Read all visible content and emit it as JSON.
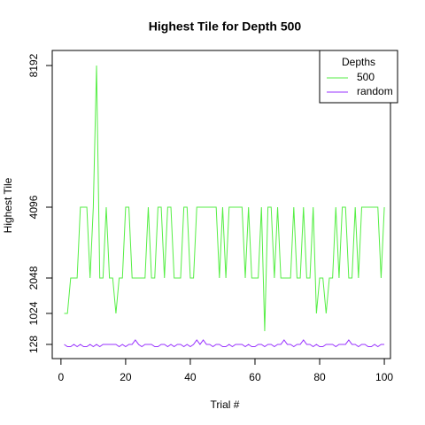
{
  "chart_data": {
    "type": "line",
    "title": "Highest Tile for Depth 500",
    "xlabel": "Trial #",
    "ylabel": "Highest Tile",
    "x": [
      1,
      2,
      3,
      4,
      5,
      6,
      7,
      8,
      9,
      10,
      11,
      12,
      13,
      14,
      15,
      16,
      17,
      18,
      19,
      20,
      21,
      22,
      23,
      24,
      25,
      26,
      27,
      28,
      29,
      30,
      31,
      32,
      33,
      34,
      35,
      36,
      37,
      38,
      39,
      40,
      41,
      42,
      43,
      44,
      45,
      46,
      47,
      48,
      49,
      50,
      51,
      52,
      53,
      54,
      55,
      56,
      57,
      58,
      59,
      60,
      61,
      62,
      63,
      64,
      65,
      66,
      67,
      68,
      69,
      70,
      71,
      72,
      73,
      74,
      75,
      76,
      77,
      78,
      79,
      80,
      81,
      82,
      83,
      84,
      85,
      86,
      87,
      88,
      89,
      90,
      91,
      92,
      93,
      94,
      95,
      96,
      97,
      98,
      99,
      100
    ],
    "series": [
      {
        "name": "500",
        "color": "#55ee44",
        "values": [
          1024,
          1024,
          2048,
          2048,
          2048,
          4096,
          4096,
          4096,
          2048,
          4096,
          8192,
          2048,
          2048,
          4096,
          2048,
          2048,
          1024,
          2048,
          2048,
          4096,
          4096,
          2048,
          2048,
          2048,
          2048,
          2048,
          4096,
          2048,
          2048,
          4096,
          4096,
          2048,
          4096,
          4096,
          2048,
          2048,
          2048,
          4096,
          4096,
          2048,
          2048,
          4096,
          4096,
          4096,
          4096,
          4096,
          4096,
          4096,
          2048,
          4096,
          2048,
          4096,
          4096,
          4096,
          4096,
          4096,
          2048,
          4096,
          2048,
          2048,
          2048,
          4096,
          512,
          4096,
          4096,
          2048,
          4096,
          2048,
          2048,
          2048,
          2048,
          4096,
          2048,
          2048,
          4096,
          2048,
          2048,
          4096,
          1024,
          2048,
          2048,
          1024,
          2048,
          2048,
          4096,
          2048,
          4096,
          4096,
          2048,
          2048,
          4096,
          2048,
          4096,
          4096,
          4096,
          4096,
          4096,
          4096,
          2048,
          4096
        ]
      },
      {
        "name": "random",
        "color": "#9933ff",
        "values": [
          128,
          64,
          64,
          128,
          64,
          128,
          64,
          64,
          128,
          64,
          128,
          64,
          128,
          128,
          128,
          128,
          128,
          64,
          128,
          64,
          128,
          128,
          256,
          128,
          64,
          128,
          128,
          128,
          64,
          64,
          128,
          128,
          64,
          128,
          64,
          128,
          128,
          64,
          128,
          64,
          128,
          256,
          128,
          256,
          128,
          128,
          64,
          128,
          128,
          64,
          64,
          128,
          64,
          128,
          128,
          128,
          64,
          128,
          64,
          64,
          128,
          128,
          64,
          128,
          128,
          64,
          128,
          128,
          256,
          128,
          128,
          64,
          128,
          128,
          256,
          128,
          128,
          64,
          128,
          64,
          64,
          128,
          128,
          128,
          64,
          128,
          128,
          128,
          256,
          128,
          128,
          64,
          128,
          128,
          64,
          64,
          128,
          64,
          128,
          128
        ]
      }
    ],
    "xlim": [
      -2.7,
      101.9
    ],
    "xticks": [
      0,
      20,
      40,
      60,
      80,
      100
    ],
    "ylim": [
      -282,
      8627
    ],
    "yticks": [
      128,
      1024,
      2048,
      4096,
      8192
    ],
    "legend_title": "Depths",
    "legend": "top-right"
  }
}
